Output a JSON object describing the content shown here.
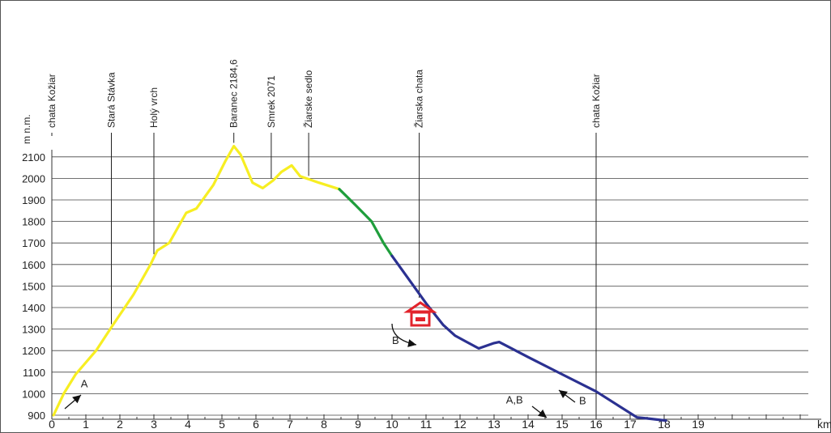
{
  "chart_data": {
    "type": "line",
    "title": "",
    "ylabel": "m n.m.",
    "xlabel": "km",
    "xlim": [
      0,
      22
    ],
    "ylim": [
      900,
      2100
    ],
    "x_ticks": [
      0,
      1,
      2,
      3,
      4,
      5,
      6,
      7,
      8,
      9,
      10,
      11,
      12,
      13,
      14,
      15,
      16,
      17,
      18,
      19
    ],
    "y_ticks": [
      900,
      1000,
      1100,
      1200,
      1300,
      1400,
      1500,
      1600,
      1700,
      1800,
      1900,
      2000,
      2100
    ],
    "grid": true,
    "series": [
      {
        "color": "#f7ee22",
        "points": [
          [
            0.05,
            900
          ],
          [
            0.35,
            1000
          ],
          [
            0.7,
            1090
          ],
          [
            1.3,
            1200
          ],
          [
            1.8,
            1320
          ],
          [
            2.4,
            1460
          ],
          [
            2.9,
            1600
          ],
          [
            3.1,
            1665
          ],
          [
            3.45,
            1700
          ],
          [
            3.95,
            1840
          ],
          [
            4.25,
            1860
          ],
          [
            4.75,
            1970
          ],
          [
            5.1,
            2080
          ],
          [
            5.35,
            2150
          ],
          [
            5.55,
            2110
          ],
          [
            5.9,
            1980
          ],
          [
            6.2,
            1955
          ],
          [
            6.5,
            1990
          ],
          [
            6.75,
            2030
          ],
          [
            7.05,
            2060
          ],
          [
            7.3,
            2010
          ],
          [
            7.85,
            1980
          ],
          [
            8.45,
            1950
          ]
        ]
      },
      {
        "color": "#1f9e3c",
        "points": [
          [
            8.45,
            1950
          ],
          [
            8.9,
            1880
          ],
          [
            9.4,
            1800
          ],
          [
            9.75,
            1700
          ],
          [
            10.0,
            1640
          ]
        ]
      },
      {
        "color": "#2b3191",
        "points": [
          [
            10.0,
            1640
          ],
          [
            10.5,
            1530
          ],
          [
            11.0,
            1420
          ],
          [
            11.3,
            1360
          ],
          [
            11.5,
            1320
          ],
          [
            11.85,
            1270
          ],
          [
            12.2,
            1240
          ],
          [
            12.55,
            1210
          ],
          [
            13.0,
            1235
          ],
          [
            13.15,
            1240
          ],
          [
            14.0,
            1170
          ],
          [
            15.0,
            1090
          ],
          [
            16.0,
            1010
          ],
          [
            16.6,
            950
          ],
          [
            17.2,
            890
          ],
          [
            17.5,
            885
          ],
          [
            18.05,
            875
          ]
        ]
      }
    ],
    "landmarks": [
      {
        "label": "chata Kožiar",
        "x": 0.0
      },
      {
        "label": "Stará Stávka",
        "x": 1.75
      },
      {
        "label": "Holý vrch",
        "x": 3.0
      },
      {
        "label": "Baranec 2184,6",
        "x": 5.35
      },
      {
        "label": "Smrek 2071",
        "x": 6.45
      },
      {
        "label": "Žiarske sedlo",
        "x": 7.55
      },
      {
        "label": "Žiarska chata",
        "x": 10.8
      },
      {
        "label": "chata Kožiar",
        "x": 16.0
      }
    ],
    "annotations": [
      {
        "text": "A",
        "x": 0.85,
        "y": 1030
      },
      {
        "text": "B",
        "x": 10.0,
        "y": 1230
      },
      {
        "text": "A,B",
        "x": 13.35,
        "y": 955
      },
      {
        "text": "B",
        "x": 15.5,
        "y": 950
      }
    ]
  },
  "icons": {
    "hut": "hut-icon",
    "hut_color": "#e2232b",
    "arrow_color": "#111111"
  }
}
